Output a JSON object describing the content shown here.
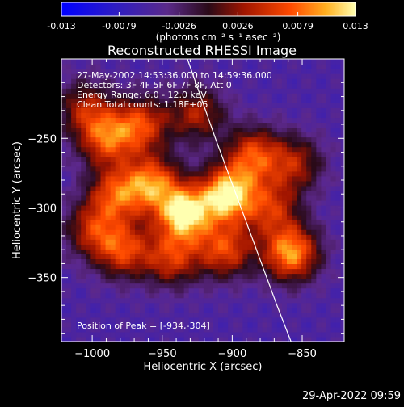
{
  "chart_data": {
    "type": "heatmap",
    "title": "Reconstructed RHESSI Image",
    "colorbar": {
      "ticks": [
        "-0.013",
        "-0.0079",
        "-0.0026",
        "0.0026",
        "0.0079",
        "0.013"
      ],
      "tick_values": [
        -0.013,
        -0.0079,
        -0.0026,
        0.0026,
        0.0079,
        0.013
      ],
      "range": [
        -0.013,
        0.013
      ],
      "units": "(photons cm⁻² s⁻¹ asec⁻²)"
    },
    "xlabel": "Heliocentric X (arcsec)",
    "ylabel": "Heliocentric Y (arcsec)",
    "xlim": [
      -1022,
      -820
    ],
    "ylim": [
      -396,
      -193
    ],
    "xticks": [
      -1000,
      -950,
      -900,
      -850
    ],
    "yticks": [
      -250,
      -300,
      -350
    ],
    "xtick_labels": [
      "−1000",
      "−950",
      "−900",
      "−850"
    ],
    "ytick_labels": [
      "−250",
      "−300",
      "−350"
    ],
    "annotations": [
      "27-May-2002 14:53:36.000 to 14:59:36.000",
      "Detectors: 3F 4F 5F 6F 7F 8F, Att 0",
      "Energy Range: 6.0 - 12.0 keV",
      "Clean     Total counts: 1.18E+05"
    ],
    "peak_label": "Position of Peak = [-934,-304]",
    "peak": [
      -934,
      -304
    ],
    "sources": [
      {
        "x": -934,
        "y": -304,
        "value": 0.0125
      },
      {
        "x": -903,
        "y": -290,
        "value": 0.0122
      },
      {
        "x": -957,
        "y": -282,
        "value": 0.0078
      },
      {
        "x": -990,
        "y": -250,
        "value": 0.0062
      },
      {
        "x": -965,
        "y": -240,
        "value": 0.0058
      },
      {
        "x": -983,
        "y": -290,
        "value": 0.006
      },
      {
        "x": -978,
        "y": -330,
        "value": 0.0058
      },
      {
        "x": -943,
        "y": -336,
        "value": 0.0048
      },
      {
        "x": -885,
        "y": -262,
        "value": 0.0062
      },
      {
        "x": -905,
        "y": -330,
        "value": 0.006
      },
      {
        "x": -872,
        "y": -300,
        "value": 0.004
      },
      {
        "x": -858,
        "y": -332,
        "value": 0.01
      },
      {
        "x": -855,
        "y": -268,
        "value": 0.0032
      },
      {
        "x": -925,
        "y": -232,
        "value": 0.0034
      },
      {
        "x": -1005,
        "y": -228,
        "value": 0.003
      },
      {
        "x": -1000,
        "y": -315,
        "value": 0.0036
      }
    ],
    "limb": [
      [
        -932,
        -193
      ],
      [
        -912,
        -250
      ],
      [
        -890,
        -310
      ],
      [
        -868,
        -370
      ],
      [
        -858,
        -396
      ]
    ]
  },
  "footer": {
    "timestamp": "29-Apr-2022 09:59"
  }
}
